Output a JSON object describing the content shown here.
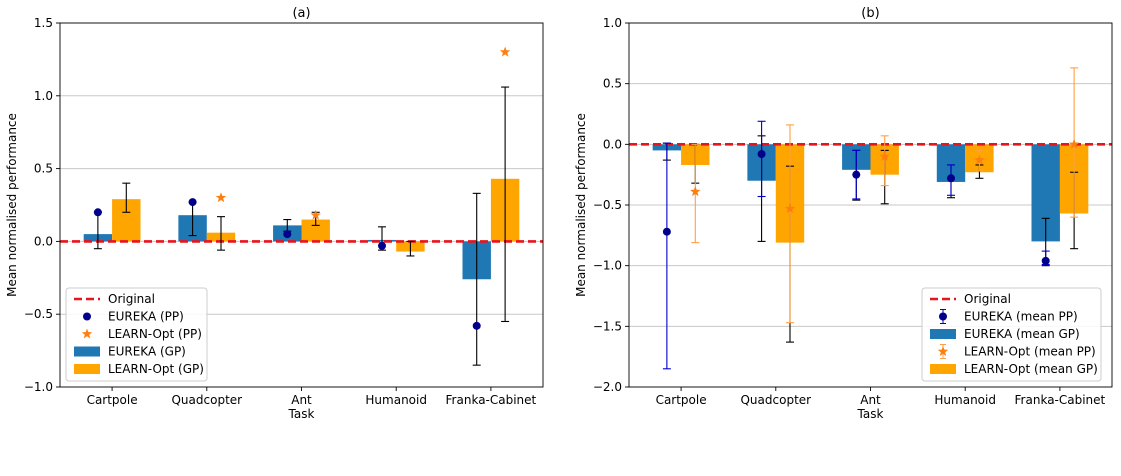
{
  "chart_data": [
    {
      "type": "bar",
      "title": "(a)",
      "xlabel": "Task",
      "ylabel": "Mean normalised performance",
      "categories": [
        "Cartpole",
        "Quadcopter",
        "Ant",
        "Humanoid",
        "Franka-Cabinet"
      ],
      "ylim": [
        -1.0,
        1.5
      ],
      "yticks": [
        -1.0,
        -0.5,
        0.0,
        0.5,
        1.0,
        1.5
      ],
      "ytick_labels": [
        "−1.0",
        "−0.5",
        "0.0",
        "0.5",
        "1.0",
        "1.5"
      ],
      "grid": "horizontal",
      "legend_position": "lower-left",
      "reference_line": {
        "name": "Original",
        "value": 0.0,
        "color": "#e8141c"
      },
      "series": [
        {
          "name": "EUREKA (GP)",
          "kind": "bar",
          "color": "#1f77b4",
          "values": [
            0.05,
            0.18,
            0.11,
            0.01,
            -0.26
          ],
          "err_low": [
            -0.05,
            0.04,
            0.07,
            -0.06,
            -0.85
          ],
          "err_high": [
            0.2,
            0.27,
            0.15,
            0.1,
            0.33
          ]
        },
        {
          "name": "LEARN-Opt (GP)",
          "kind": "bar",
          "color": "#ffa500",
          "values": [
            0.29,
            0.06,
            0.15,
            -0.07,
            0.43
          ],
          "err_low": [
            0.2,
            -0.06,
            0.11,
            -0.1,
            -0.55
          ],
          "err_high": [
            0.4,
            0.17,
            0.2,
            0.0,
            1.06
          ]
        },
        {
          "name": "EUREKA (PP)",
          "kind": "point",
          "marker": "circle",
          "color": "#00008b",
          "values": [
            0.2,
            0.27,
            0.05,
            -0.03,
            -0.58
          ]
        },
        {
          "name": "LEARN-Opt (PP)",
          "kind": "point",
          "marker": "star",
          "color": "#ff7f0e",
          "values": [
            null,
            0.3,
            0.18,
            null,
            1.3
          ]
        }
      ],
      "legend_order": [
        "Original",
        "EUREKA (PP)",
        "LEARN-Opt (PP)",
        "EUREKA (GP)",
        "LEARN-Opt (GP)"
      ]
    },
    {
      "type": "bar",
      "title": "(b)",
      "xlabel": "Task",
      "ylabel": "Mean normalised performance",
      "categories": [
        "Cartpole",
        "Quadcopter",
        "Ant",
        "Humanoid",
        "Franka-Cabinet"
      ],
      "ylim": [
        -2.0,
        1.0
      ],
      "yticks": [
        -2.0,
        -1.5,
        -1.0,
        -0.5,
        0.0,
        0.5,
        1.0
      ],
      "ytick_labels": [
        "−2.0",
        "−1.5",
        "−1.0",
        "−0.5",
        "0.0",
        "0.5",
        "1.0"
      ],
      "grid": "horizontal",
      "legend_position": "lower-right",
      "reference_line": {
        "name": "Original",
        "value": 0.0,
        "color": "#e8141c"
      },
      "series": [
        {
          "name": "EUREKA (mean GP)",
          "kind": "bar",
          "color": "#1f77b4",
          "values": [
            -0.05,
            -0.3,
            -0.21,
            -0.31,
            -0.8
          ],
          "err_low": [
            -0.13,
            -0.8,
            -0.46,
            -0.44,
            -1.0
          ],
          "err_high": [
            0.01,
            0.07,
            -0.05,
            -0.17,
            -0.61
          ],
          "err_color": "#000000"
        },
        {
          "name": "LEARN-Opt (mean GP)",
          "kind": "bar",
          "color": "#ffa500",
          "values": [
            -0.17,
            -0.81,
            -0.25,
            -0.23,
            -0.57
          ],
          "err_low": [
            -0.32,
            -1.63,
            -0.49,
            -0.28,
            -0.86
          ],
          "err_high": [
            0.0,
            -0.18,
            -0.05,
            -0.17,
            -0.23
          ],
          "err_color": "#000000"
        },
        {
          "name": "EUREKA (mean PP)",
          "kind": "point",
          "marker": "circle",
          "color": "#00008b",
          "values": [
            -0.72,
            -0.08,
            -0.25,
            -0.28,
            -0.96
          ],
          "err_low": [
            -1.85,
            -0.43,
            -0.45,
            -0.42,
            -0.99
          ],
          "err_high": [
            0.01,
            0.19,
            -0.05,
            -0.17,
            -0.88
          ],
          "err_color": "#0000cd"
        },
        {
          "name": "LEARN-Opt (mean PP)",
          "kind": "point",
          "marker": "star",
          "color": "#ff7f0e",
          "values": [
            -0.39,
            -0.53,
            -0.1,
            -0.13,
            -0.0
          ],
          "err_low": [
            -0.81,
            -1.47,
            -0.34,
            -0.22,
            -0.6
          ],
          "err_high": [
            0.0,
            0.16,
            0.07,
            -0.05,
            0.63
          ],
          "err_color": "#ffa040"
        }
      ],
      "legend_order": [
        "Original",
        "EUREKA (mean PP)",
        "EUREKA (mean GP)",
        "LEARN-Opt (mean PP)",
        "LEARN-Opt (mean GP)"
      ]
    }
  ]
}
